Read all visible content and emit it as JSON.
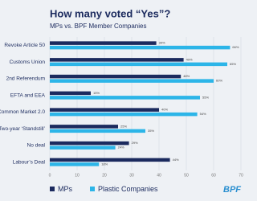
{
  "chart_data": {
    "type": "bar",
    "orientation": "horizontal",
    "title": "How many voted “Yes”?",
    "subtitle": "MPs vs. BPF Member Companies",
    "categories": [
      "Revoke Article 50",
      "Customs Union",
      "2nd Referendum",
      "EFTA and EEA",
      "Common Market 2.0",
      "Two-year ‘Standstill’",
      "No deal",
      "Labour’s Deal"
    ],
    "series": [
      {
        "name": "MPs",
        "color": "#1b2a5e",
        "values": [
          39,
          49,
          48,
          15,
          40,
          25,
          29,
          44
        ],
        "value_labels": [
          "39%",
          "49%",
          "48%",
          "15%",
          "40%",
          "25%",
          "29%",
          "44%"
        ]
      },
      {
        "name": "Plastic Companies",
        "color": "#2cb5e8",
        "values": [
          66,
          65,
          60,
          55,
          54,
          35,
          24,
          18
        ],
        "value_labels": [
          "66%",
          "65%",
          "60%",
          "55%",
          "54%",
          "35%",
          "24%",
          "18%"
        ]
      }
    ],
    "xlim": [
      0,
      70
    ],
    "xticks": [
      0,
      10,
      20,
      30,
      40,
      50,
      60,
      70
    ],
    "grid": true,
    "legend": "bottom",
    "logo": "BPF"
  }
}
